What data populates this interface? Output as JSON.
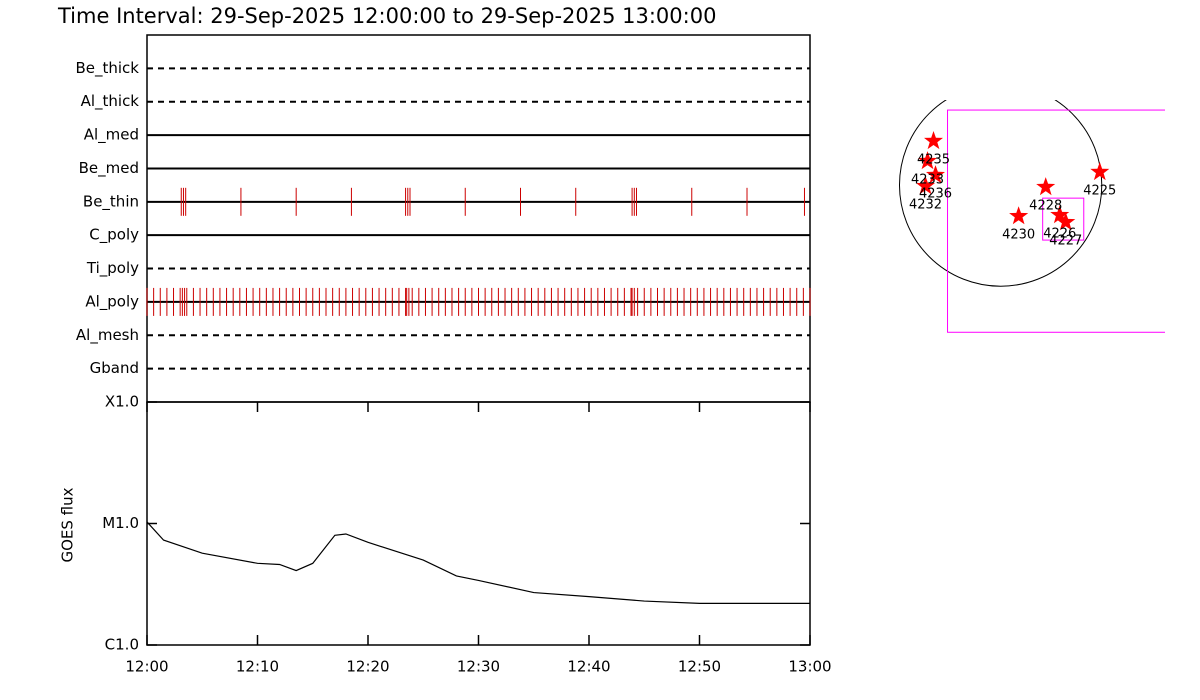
{
  "title": "Time Interval: 29-Sep-2025 12:00:00 to 29-Sep-2025 13:00:00",
  "chart_data": [
    {
      "type": "timeline",
      "xlim": [
        0,
        60
      ],
      "event_color": "#cc0000",
      "rows": [
        {
          "name": "Be_thick",
          "style": "dashed",
          "events": []
        },
        {
          "name": "Al_thick",
          "style": "dashed",
          "events": []
        },
        {
          "name": "Al_med",
          "style": "solid",
          "events": []
        },
        {
          "name": "Be_med",
          "style": "solid",
          "events": []
        },
        {
          "name": "Be_thin",
          "style": "solid",
          "events": [
            3.1,
            3.3,
            3.5,
            8.5,
            13.5,
            18.5,
            23.4,
            23.6,
            23.8,
            28.8,
            33.8,
            38.8,
            43.9,
            44.1,
            44.3,
            49.3,
            54.3,
            59.5
          ]
        },
        {
          "name": "C_poly",
          "style": "solid",
          "events": []
        },
        {
          "name": "Ti_poly",
          "style": "dashed",
          "events": []
        },
        {
          "name": "Al_poly",
          "style": "solid",
          "events": [
            0,
            0.6,
            1.2,
            1.8,
            2.4,
            3,
            3.2,
            3.4,
            3.6,
            4.2,
            4.8,
            5.4,
            6,
            6.6,
            7.2,
            7.8,
            8.4,
            9,
            9.6,
            10.2,
            10.8,
            11.4,
            12,
            12.6,
            13.2,
            13.8,
            14.4,
            15,
            15.6,
            16.2,
            16.8,
            17.4,
            18,
            18.6,
            19.2,
            19.8,
            20.4,
            21,
            21.6,
            22.2,
            22.8,
            23.4,
            23.5,
            23.7,
            24,
            24.6,
            25.2,
            25.8,
            26.4,
            27,
            27.6,
            28.2,
            28.8,
            29.4,
            30,
            30.6,
            31.2,
            31.8,
            32.4,
            33,
            33.6,
            34.2,
            34.8,
            35.4,
            36,
            36.6,
            37.2,
            37.8,
            38.4,
            39,
            39.6,
            40.2,
            40.8,
            41.4,
            42,
            42.6,
            43.2,
            43.8,
            43.9,
            44.1,
            44.4,
            45,
            45.6,
            46.2,
            46.8,
            47.4,
            48,
            48.6,
            49.2,
            49.8,
            50.4,
            51,
            51.6,
            52.2,
            52.8,
            53.4,
            54,
            54.6,
            55.2,
            55.8,
            56.4,
            57,
            57.6,
            58.2,
            58.8,
            59.4,
            60
          ]
        },
        {
          "name": "Al_mesh",
          "style": "dashed",
          "events": []
        },
        {
          "name": "Gband",
          "style": "dashed",
          "events": []
        }
      ]
    },
    {
      "type": "line",
      "ylabel": "GOES flux",
      "color": "#000000",
      "log_y": true,
      "x": [
        0,
        1.5,
        5,
        10,
        12,
        13.5,
        15,
        17,
        18,
        20,
        25,
        28,
        30,
        35,
        40,
        45,
        50,
        53,
        57,
        60
      ],
      "values": [
        1.03e-05,
        7.3e-06,
        5.7e-06,
        4.7e-06,
        4.6e-06,
        4.1e-06,
        4.7e-06,
        8e-06,
        8.2e-06,
        7e-06,
        5e-06,
        3.7e-06,
        3.4e-06,
        2.7e-06,
        2.5e-06,
        2.3e-06,
        2.2e-06,
        2.2e-06,
        2.2e-06,
        2.2e-06
      ],
      "xlim": [
        0,
        60
      ],
      "xticks": [
        {
          "value": 0,
          "label": "12:00"
        },
        {
          "value": 10,
          "label": "12:10"
        },
        {
          "value": 20,
          "label": "12:20"
        },
        {
          "value": 30,
          "label": "12:30"
        },
        {
          "value": 40,
          "label": "12:40"
        },
        {
          "value": 50,
          "label": "12:50"
        },
        {
          "value": 60,
          "label": "13:00"
        }
      ],
      "ylim": [
        1e-06,
        0.0001
      ],
      "yticks": [
        {
          "value": 1e-06,
          "label": "C1.0"
        },
        {
          "value": 1e-05,
          "label": "M1.0"
        },
        {
          "value": 0.0001,
          "label": "X1.0"
        }
      ]
    },
    {
      "type": "map",
      "disk_radius": 960,
      "xlim": [
        -1050,
        1560
      ],
      "ylim": [
        -1400,
        760
      ],
      "star_color": "#ff0000",
      "box_color": "#ff00ff",
      "points": [
        {
          "label": "4235",
          "x": -637,
          "y": 418
        },
        {
          "label": "4233",
          "x": -694,
          "y": 228
        },
        {
          "label": "4236",
          "x": -618,
          "y": 95
        },
        {
          "label": "4232",
          "x": -713,
          "y": -10
        },
        {
          "label": "4225",
          "x": 941,
          "y": 124
        },
        {
          "label": "4228",
          "x": 428,
          "y": -19
        },
        {
          "label": "4230",
          "x": 171,
          "y": -295
        },
        {
          "label": "4226",
          "x": 561,
          "y": -285
        },
        {
          "label": "4227",
          "x": 618,
          "y": -352
        }
      ],
      "boxes": [
        {
          "x": [
            -504,
            1900
          ],
          "y": [
            -1397,
            712
          ]
        },
        {
          "x": [
            399,
            789
          ],
          "y": [
            -522,
            -124
          ]
        }
      ]
    }
  ]
}
